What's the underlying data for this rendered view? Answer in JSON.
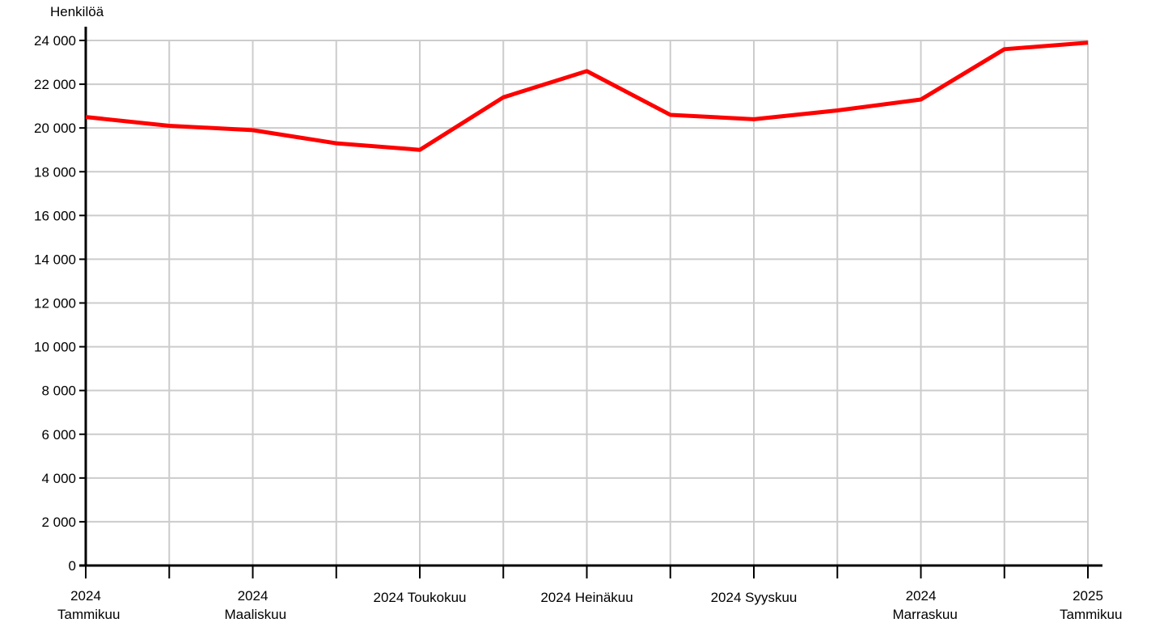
{
  "chart_data": {
    "type": "line",
    "y_label": "Henkilöä",
    "categories": [
      "2024 Tammikuu",
      null,
      "2024 Maaliskuu",
      null,
      "2024 Toukokuu",
      null,
      "2024 Heinäkuu",
      null,
      "2024 Syyskuu",
      null,
      "2024 Marraskuu",
      null,
      "2025 Tammikuu"
    ],
    "series": [
      {
        "color": "#ff0000",
        "values": [
          20500,
          20100,
          19900,
          19300,
          19000,
          21400,
          22600,
          20600,
          20400,
          20800,
          21300,
          23600,
          23900
        ]
      }
    ],
    "ylim": [
      0,
      24000
    ],
    "yticks": [
      0,
      {
        "value": 2000,
        "label": "2 000"
      },
      {
        "value": 4000,
        "label": "4 000"
      },
      {
        "value": 6000,
        "label": "6 000"
      },
      {
        "value": 8000,
        "label": "8 000"
      },
      {
        "value": 10000,
        "label": "10 000"
      },
      {
        "value": 12000,
        "label": "12 000"
      },
      {
        "value": 14000,
        "label": "14 000"
      },
      {
        "value": 16000,
        "label": "16 000"
      },
      {
        "value": 18000,
        "label": "18 000"
      },
      {
        "value": 20000,
        "label": "20 000"
      },
      {
        "value": 22000,
        "label": "22 000"
      },
      {
        "value": 24000,
        "label": "24 000"
      }
    ],
    "grid": true
  }
}
